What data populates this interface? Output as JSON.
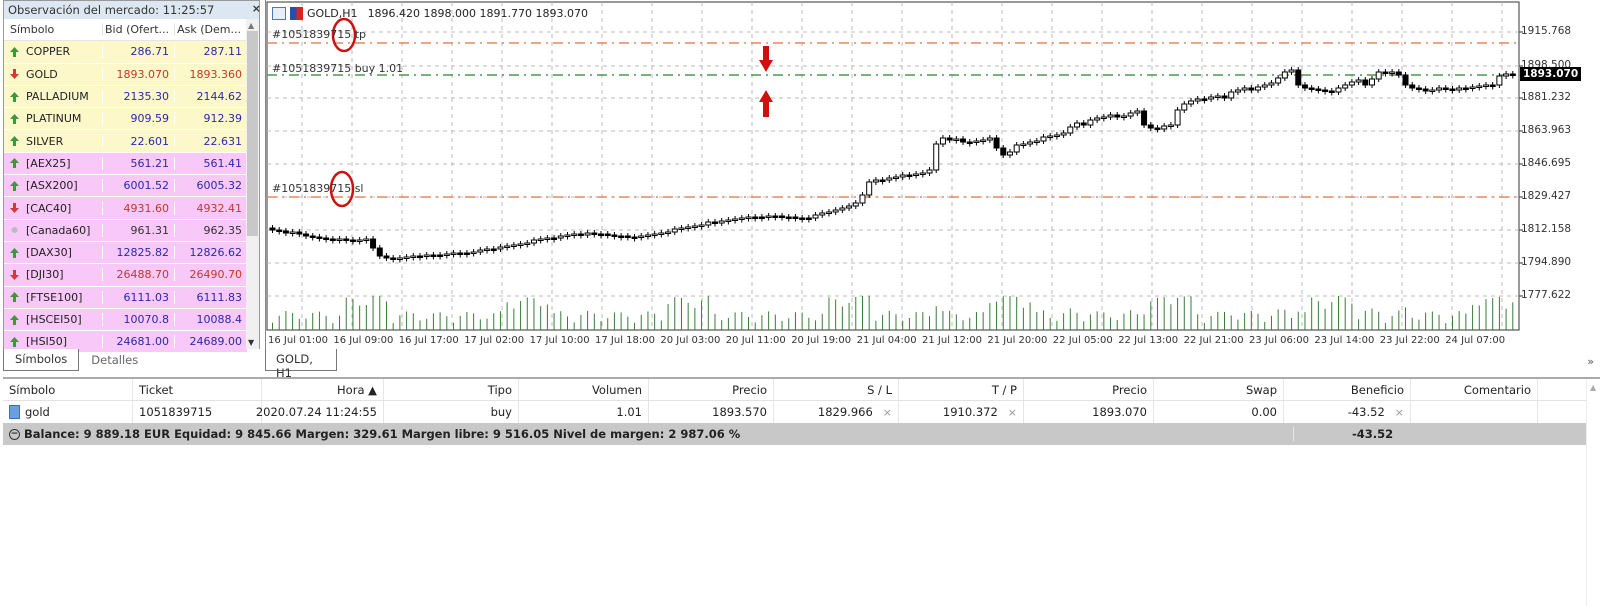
{
  "market_watch": {
    "title": "Observación del mercado: 11:25:57",
    "close_glyph": "×",
    "columns": [
      "Símbolo",
      "Bid (Ofert...",
      "Ask (Dem..."
    ],
    "rows": [
      {
        "symbol": "COPPER",
        "bid": "286.71",
        "ask": "287.11",
        "dir": "up",
        "group": "com"
      },
      {
        "symbol": "GOLD",
        "bid": "1893.070",
        "ask": "1893.360",
        "dir": "down",
        "group": "com"
      },
      {
        "symbol": "PALLADIUM",
        "bid": "2135.30",
        "ask": "2144.62",
        "dir": "up",
        "group": "com"
      },
      {
        "symbol": "PLATINUM",
        "bid": "909.59",
        "ask": "912.39",
        "dir": "up",
        "group": "com"
      },
      {
        "symbol": "SILVER",
        "bid": "22.601",
        "ask": "22.631",
        "dir": "up",
        "group": "com"
      },
      {
        "symbol": "[AEX25]",
        "bid": "561.21",
        "ask": "561.41",
        "dir": "up",
        "group": "idx"
      },
      {
        "symbol": "[ASX200]",
        "bid": "6001.52",
        "ask": "6005.32",
        "dir": "up",
        "group": "idx"
      },
      {
        "symbol": "[CAC40]",
        "bid": "4931.60",
        "ask": "4932.41",
        "dir": "down",
        "group": "idx"
      },
      {
        "symbol": "[Canada60]",
        "bid": "961.31",
        "ask": "962.35",
        "dir": "flat",
        "group": "idx"
      },
      {
        "symbol": "[DAX30]",
        "bid": "12825.82",
        "ask": "12826.62",
        "dir": "up",
        "group": "idx"
      },
      {
        "symbol": "[DJI30]",
        "bid": "26488.70",
        "ask": "26490.70",
        "dir": "down",
        "group": "idx"
      },
      {
        "symbol": "[FTSE100]",
        "bid": "6111.03",
        "ask": "6111.83",
        "dir": "up",
        "group": "idx"
      },
      {
        "symbol": "[HSCEI50]",
        "bid": "10070.8",
        "ask": "10088.4",
        "dir": "up",
        "group": "idx"
      },
      {
        "symbol": "[HSI50]",
        "bid": "24681.00",
        "ask": "24689.00",
        "dir": "up",
        "group": "idx"
      }
    ],
    "tabs": [
      "Símbolos",
      "Detalles"
    ],
    "active_tab": "Símbolos"
  },
  "chart": {
    "header": "GOLD,H1  1896.420 1898.000 1891.770 1893.070",
    "symbol": "GOLD,H1",
    "ohlc": "1896.420 1898.000 1891.770 1893.070",
    "tab_label": "GOLD, H1",
    "tp_label": "#1051839715 tp",
    "order_label": "#1051839715 buy 1.01",
    "sl_label": "#1051839715 sl",
    "current_price": "1893.070",
    "y_ticks": [
      "1915.768",
      "1898.500",
      "1881.232",
      "1863.963",
      "1846.695",
      "1829.427",
      "1812.158",
      "1794.890",
      "1777.622"
    ],
    "x_ticks": [
      "16 Jul 01:00",
      "16 Jul 09:00",
      "16 Jul 17:00",
      "17 Jul 02:00",
      "17 Jul 10:00",
      "17 Jul 18:00",
      "20 Jul 03:00",
      "20 Jul 11:00",
      "20 Jul 19:00",
      "21 Jul 04:00",
      "21 Jul 12:00",
      "21 Jul 20:00",
      "22 Jul 05:00",
      "22 Jul 13:00",
      "22 Jul 21:00",
      "23 Jul 06:00",
      "23 Jul 14:00",
      "23 Jul 22:00",
      "24 Jul 07:00"
    ],
    "colors": {
      "tp_sl_line": "#e8875a",
      "order_line": "#4a9a4a",
      "annotation": "#d01010",
      "volume": "#3a7a3a"
    },
    "more_glyph": "»"
  },
  "terminal": {
    "columns": [
      "Símbolo",
      "Ticket",
      "Hora ▲",
      "Tipo",
      "Volumen",
      "Precio",
      "S / L",
      "T / P",
      "Precio",
      "Swap",
      "Beneficio",
      "Comentario"
    ],
    "position": {
      "symbol": "gold",
      "ticket": "1051839715",
      "time": "2020.07.24 11:24:55",
      "type": "buy",
      "volume": "1.01",
      "open_price": "1893.570",
      "sl": "1829.966",
      "tp": "1910.372",
      "price": "1893.070",
      "swap": "0.00",
      "profit": "-43.52",
      "comment": ""
    },
    "summary": {
      "text": "Balance: 9 889.18 EUR  Equidad: 9 845.66  Margen: 329.61  Margen libre: 9 516.05  Nivel de margen: 2 987.06 %",
      "profit": "-43.52"
    },
    "close_glyph": "×"
  }
}
